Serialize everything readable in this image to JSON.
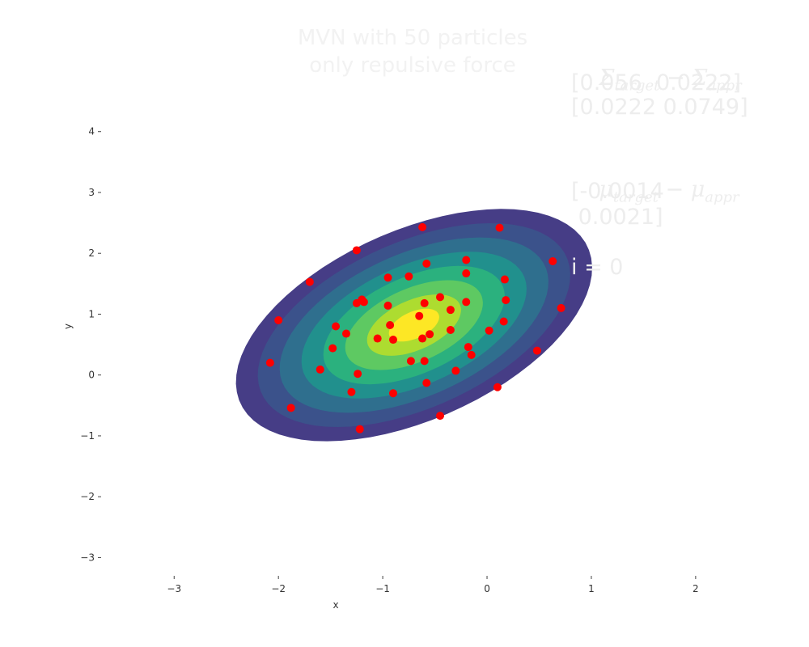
{
  "chart_data": {
    "type": "scatter",
    "title": "MVN with 50 particles\nonly repulsive force",
    "xlabel": "x",
    "ylabel": "y",
    "xlim": [
      -3.7,
      2.35
    ],
    "ylim": [
      -3.3,
      4.9
    ],
    "xticks": [
      -3,
      -2,
      -1,
      0,
      1,
      2
    ],
    "yticks": [
      -3,
      -2,
      -1,
      0,
      1,
      2,
      3,
      4
    ],
    "xtick_labels": [
      "−3",
      "−2",
      "−1",
      "0",
      "1",
      "2"
    ],
    "ytick_labels": [
      "−3",
      "−2",
      "−1",
      "0",
      "1",
      "2",
      "3",
      "4"
    ],
    "grid": false,
    "contour": {
      "type": "filled-gaussian-contour",
      "mean": [
        -0.7,
        0.82
      ],
      "cov": [
        [
          0.4,
          0.22
        ],
        [
          0.22,
          0.5
        ]
      ],
      "levels_colors": [
        "#463d86",
        "#3b528b",
        "#2f6f8e",
        "#21908d",
        "#2bb17e",
        "#5ec962",
        "#addc30",
        "#fde725"
      ]
    },
    "series": [
      {
        "color": "#ff0000",
        "x": [
          -0.62,
          0.12,
          -1.25,
          0.63,
          -1.7,
          -0.58,
          -0.2,
          -0.75,
          -0.95,
          -1.2,
          -0.2,
          0.17,
          -1.25,
          -0.95,
          -0.45,
          -0.6,
          -0.35,
          -0.2,
          0.18,
          0.71,
          -2.0,
          -1.45,
          -0.65,
          -0.93,
          -1.35,
          -0.55,
          -0.62,
          -0.35,
          0.02,
          -1.48,
          -1.05,
          -0.18,
          -0.73,
          0.48,
          -2.08,
          -1.6,
          -1.24,
          -0.3,
          -0.6,
          0.1,
          -1.3,
          -0.9,
          -1.88,
          -0.45,
          -1.22,
          -0.9,
          -0.15,
          -0.58,
          0.16,
          -1.18
        ],
        "y": [
          2.43,
          2.42,
          2.05,
          1.87,
          1.53,
          1.83,
          1.89,
          1.62,
          1.6,
          1.24,
          1.67,
          1.57,
          1.18,
          1.14,
          1.28,
          1.18,
          1.07,
          1.2,
          1.23,
          1.1,
          0.9,
          0.8,
          0.97,
          0.82,
          0.68,
          0.67,
          0.6,
          0.74,
          0.73,
          0.44,
          0.6,
          0.46,
          0.23,
          0.4,
          0.2,
          0.09,
          0.02,
          0.07,
          0.23,
          -0.2,
          -0.28,
          -0.3,
          -0.54,
          -0.67,
          -0.89,
          0.58,
          0.33,
          -0.13,
          0.88,
          1.2
        ]
      }
    ]
  },
  "annotations": {
    "sigma_label": "Σ",
    "sigma_sub1": "target",
    "sigma_minus": " − ",
    "sigma_sub2": "appr",
    "sigma_row1": "[0.056  0.0222]",
    "sigma_row2": "[0.0222 0.0749]",
    "mu_label": "μ",
    "mu_sub1": "target",
    "mu_minus": " − ",
    "mu_sub2": "appr",
    "mu_row1": "[-0.0014",
    "mu_row2": " 0.0021]",
    "iteration": "i = 0"
  }
}
